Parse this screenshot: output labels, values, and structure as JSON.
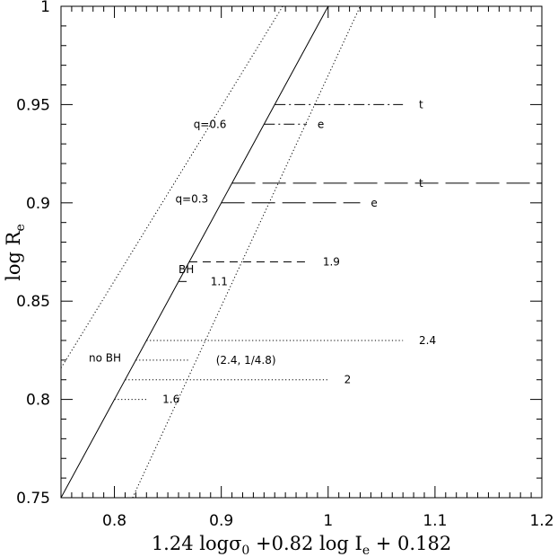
{
  "chart_data": {
    "type": "line",
    "xlim": [
      0.75,
      1.2
    ],
    "ylim": [
      0.75,
      1.0
    ],
    "xticks": [
      "0.8",
      "0.9",
      "1",
      "1.1",
      "1.2"
    ],
    "yticks": [
      "0.75",
      "0.8",
      "0.85",
      "0.9",
      "0.95",
      "1"
    ],
    "xlabel": {
      "main": "1.24 log",
      "sigma": "σ",
      "sigma_sub": "0",
      "rest": " +0.82 log I",
      "ie_sub": "e",
      "tail": " + 0.182"
    },
    "ylabel": {
      "main": "log R",
      "sub": "e"
    },
    "diagonals": [
      {
        "style": "solid",
        "x": [
          0.75,
          1.0
        ],
        "y": [
          0.75,
          1.0
        ]
      },
      {
        "style": "dotted",
        "x": [
          0.75,
          0.9575
        ],
        "y": [
          0.816,
          1.0
        ]
      },
      {
        "style": "dotted",
        "x": [
          0.817,
          1.03
        ],
        "y": [
          0.75,
          1.0
        ]
      }
    ],
    "segments": [
      {
        "style": "dashdot",
        "x": [
          0.95,
          1.07
        ],
        "y": 0.95,
        "label": "t",
        "label_x": 1.085
      },
      {
        "style": "dashdot",
        "x": [
          0.94,
          0.98
        ],
        "y": 0.94,
        "label": "e",
        "label_x": 0.99
      },
      {
        "style": "longdash",
        "x": [
          0.91,
          1.2
        ],
        "y": 0.91,
        "label": "t",
        "label_x": 1.085
      },
      {
        "style": "longdash",
        "x": [
          0.9,
          1.03
        ],
        "y": 0.9,
        "label": "e",
        "label_x": 1.04
      },
      {
        "style": "dash",
        "x": [
          0.87,
          0.98
        ],
        "y": 0.87,
        "label": "1.9",
        "label_x": 0.995
      },
      {
        "style": "dash",
        "x": [
          0.86,
          0.87
        ],
        "y": 0.86,
        "label": "1.1",
        "label_x": 0.89
      },
      {
        "style": "dotted",
        "x": [
          0.83,
          1.07
        ],
        "y": 0.83,
        "label": "2.4",
        "label_x": 1.085
      },
      {
        "style": "dotted",
        "x": [
          0.82,
          0.87
        ],
        "y": 0.82,
        "label": "(2.4, 1/4.8)",
        "label_x": 0.895
      },
      {
        "style": "dotted",
        "x": [
          0.81,
          1.0
        ],
        "y": 0.81,
        "label": "2",
        "label_x": 1.015
      },
      {
        "style": "dotted",
        "x": [
          0.8,
          0.83
        ],
        "y": 0.8,
        "label": "1.6",
        "label_x": 0.845
      }
    ],
    "annotations": [
      {
        "text": "q=0.6",
        "x": 0.874,
        "y": 0.94
      },
      {
        "text": "q=0.3",
        "x": 0.857,
        "y": 0.902
      },
      {
        "text": "BH",
        "x": 0.86,
        "y": 0.866
      },
      {
        "text": "no BH",
        "x": 0.776,
        "y": 0.821
      }
    ]
  }
}
